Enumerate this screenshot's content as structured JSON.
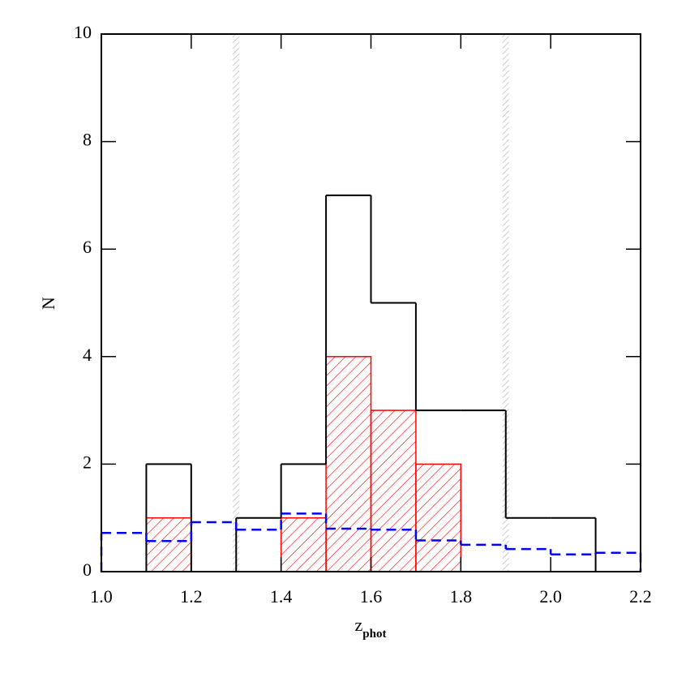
{
  "chart_data": {
    "type": "histogram",
    "xlabel": {
      "text": "z",
      "sub": "phot"
    },
    "ylabel": "N",
    "xlim": [
      1.0,
      2.2
    ],
    "ylim": [
      0,
      10
    ],
    "xticks": [
      {
        "value": 1.0,
        "label": "1.0"
      },
      1.2,
      1.4,
      1.6,
      1.8,
      {
        "value": 2.0,
        "label": "2.0"
      },
      2.2
    ],
    "yticks": [
      0,
      2,
      4,
      6,
      8,
      10
    ],
    "vlines": [
      1.3,
      1.9
    ],
    "vline_color": "#bbbbbb",
    "series": [
      {
        "style": "hatched",
        "color": "#ff0000",
        "bins": [
          1.1,
          1.2,
          1.3,
          1.4,
          1.5,
          1.6,
          1.7,
          1.8
        ],
        "values": [
          1,
          0,
          0,
          1,
          4,
          3,
          2
        ]
      },
      {
        "style": "solid",
        "color": "#000000",
        "bins": [
          1.1,
          1.2,
          1.3,
          1.4,
          1.5,
          1.6,
          1.7,
          1.8,
          1.9,
          2.0,
          2.1
        ],
        "values": [
          2,
          0,
          1,
          2,
          7,
          5,
          3,
          3,
          1,
          1
        ]
      },
      {
        "style": "dashed",
        "color": "#0000ff",
        "bins": [
          1.0,
          1.1,
          1.2,
          1.3,
          1.4,
          1.5,
          1.6,
          1.7,
          1.8,
          1.9,
          2.0,
          2.1,
          2.2
        ],
        "values": [
          0.72,
          0.57,
          0.92,
          0.78,
          1.08,
          0.8,
          0.78,
          0.58,
          0.5,
          0.42,
          0.32,
          0.35
        ]
      }
    ]
  }
}
